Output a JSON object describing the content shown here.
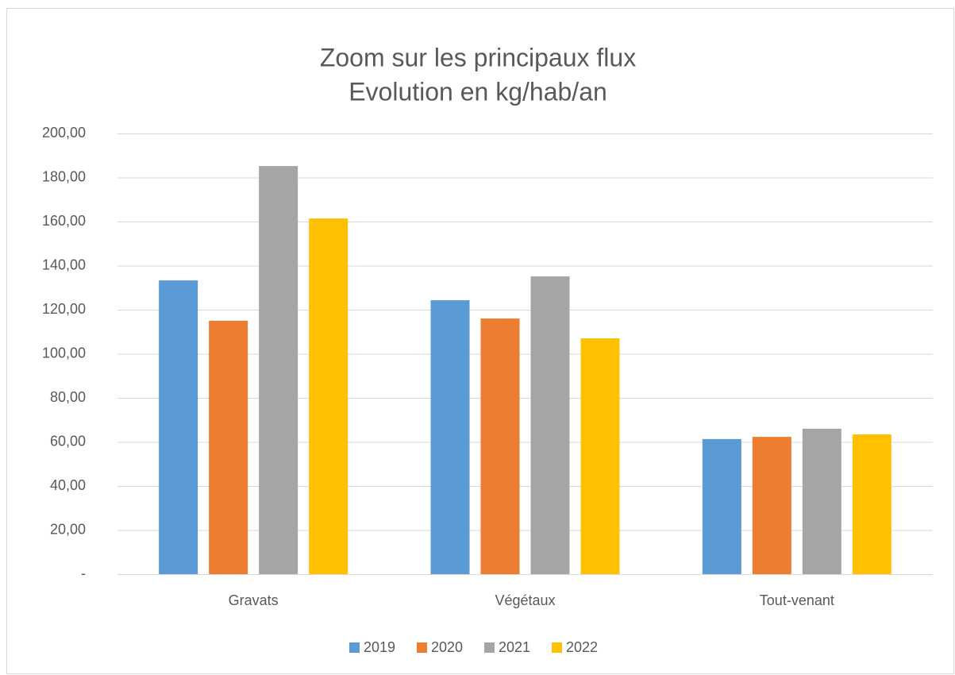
{
  "chart_data": {
    "type": "bar",
    "title": "Zoom sur les principaux flux",
    "subtitle": "Evolution en kg/hab/an",
    "categories": [
      "Gravats",
      "Végétaux",
      "Tout-venant"
    ],
    "series": [
      {
        "name": "2019",
        "color": "#5b9bd5",
        "values": [
          133.3,
          124.3,
          61.3
        ]
      },
      {
        "name": "2020",
        "color": "#ed7d31",
        "values": [
          115.0,
          116.0,
          62.3
        ]
      },
      {
        "name": "2021",
        "color": "#a5a5a5",
        "values": [
          185.2,
          135.1,
          66.0
        ]
      },
      {
        "name": "2022",
        "color": "#ffc000",
        "values": [
          161.4,
          107.0,
          63.4
        ]
      }
    ],
    "ylim": [
      0,
      200
    ],
    "yticks": [
      {
        "value": 0,
        "label": "-"
      },
      {
        "value": 20,
        "label": "20,00"
      },
      {
        "value": 40,
        "label": "40,00"
      },
      {
        "value": 60,
        "label": "60,00"
      },
      {
        "value": 80,
        "label": "80,00"
      },
      {
        "value": 100,
        "label": "100,00"
      },
      {
        "value": 120,
        "label": "120,00"
      },
      {
        "value": 140,
        "label": "140,00"
      },
      {
        "value": 160,
        "label": "160,00"
      },
      {
        "value": 180,
        "label": "180,00"
      },
      {
        "value": 200,
        "label": "200,00"
      }
    ],
    "grid": true,
    "legend": "bottom"
  }
}
